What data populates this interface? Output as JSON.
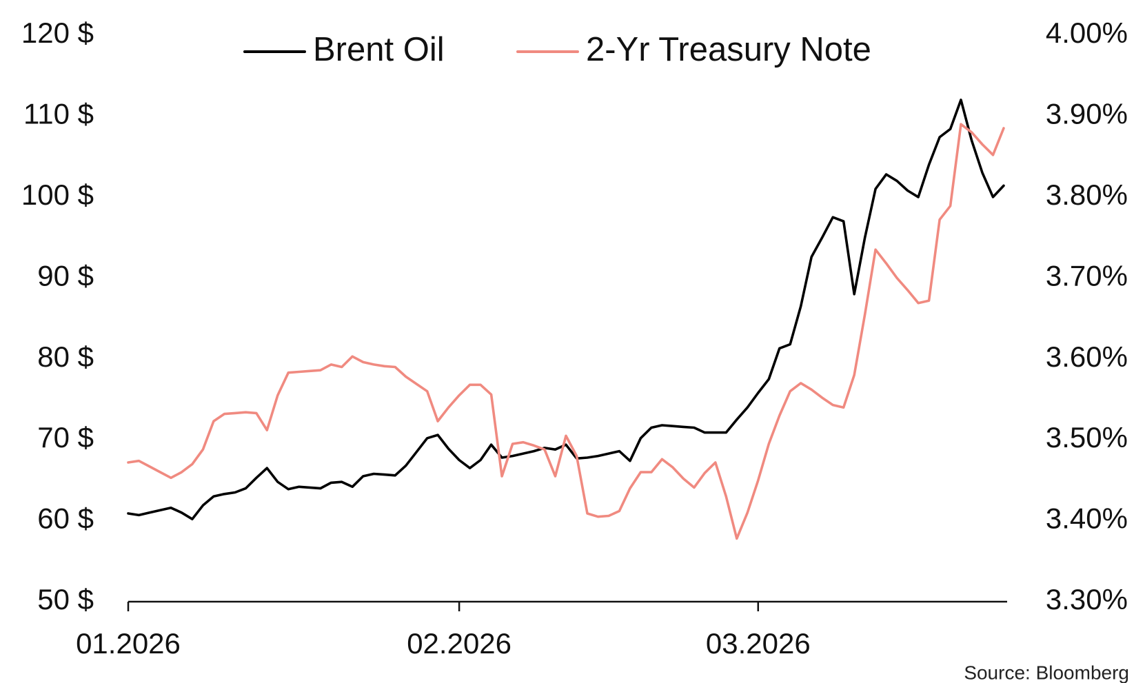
{
  "chart_data": {
    "type": "line",
    "source": "Source: Bloomberg",
    "x": [
      "01.2026",
      null,
      null,
      null,
      null,
      null,
      null,
      null,
      null,
      null,
      null,
      null,
      null,
      null,
      null,
      null,
      null,
      null,
      null,
      null,
      null,
      null,
      null,
      null,
      null,
      null,
      null,
      null,
      null,
      null,
      null,
      "02.2026",
      null,
      null,
      null,
      null,
      null,
      null,
      null,
      null,
      null,
      null,
      null,
      null,
      null,
      null,
      null,
      null,
      null,
      null,
      null,
      null,
      null,
      null,
      null,
      null,
      null,
      null,
      null,
      "03.2026",
      null,
      null,
      null,
      null,
      null,
      null,
      null,
      null,
      null,
      null,
      null,
      null,
      null,
      null,
      null,
      null,
      null,
      null,
      null,
      null,
      null,
      null,
      null
    ],
    "series": [
      {
        "name": "Brent Oil",
        "color": "#000000",
        "axis": "y",
        "values": [
          60.9,
          60.7,
          61.0,
          61.3,
          61.6,
          61.0,
          60.2,
          61.9,
          63.0,
          63.3,
          63.5,
          64.0,
          65.3,
          66.5,
          64.8,
          63.9,
          64.2,
          64.1,
          64.0,
          64.7,
          64.8,
          64.2,
          65.5,
          65.8,
          65.7,
          65.6,
          66.8,
          68.5,
          70.2,
          70.6,
          68.9,
          67.5,
          66.5,
          67.5,
          69.4,
          67.8,
          68.0,
          68.3,
          68.6,
          69.0,
          68.8,
          69.4,
          67.7,
          67.8,
          68.0,
          68.3,
          68.6,
          67.4,
          70.2,
          71.5,
          71.8,
          71.7,
          71.6,
          71.5,
          70.9,
          70.9,
          70.9,
          72.5,
          74.0,
          75.8,
          77.5,
          81.3,
          81.8,
          86.5,
          92.6,
          95.0,
          97.5,
          97.0,
          88.0,
          95.0,
          101.0,
          102.8,
          102.0,
          100.8,
          100.0,
          104.0,
          107.4,
          108.4,
          112.0,
          107.0,
          103.0,
          100.0,
          101.4
        ]
      },
      {
        "name": "2-Yr Treasury Note",
        "color": "#f08a80",
        "axis": "y2",
        "values": [
          3.472,
          3.474,
          3.467,
          3.46,
          3.453,
          3.46,
          3.47,
          3.488,
          3.523,
          3.532,
          3.533,
          3.534,
          3.533,
          3.512,
          3.555,
          3.583,
          3.584,
          3.585,
          3.586,
          3.593,
          3.59,
          3.603,
          3.596,
          3.593,
          3.591,
          3.59,
          3.578,
          3.569,
          3.56,
          3.523,
          3.54,
          3.555,
          3.568,
          3.568,
          3.556,
          3.455,
          3.495,
          3.497,
          3.493,
          3.488,
          3.455,
          3.505,
          3.48,
          3.409,
          3.405,
          3.406,
          3.412,
          3.44,
          3.46,
          3.46,
          3.476,
          3.466,
          3.452,
          3.441,
          3.459,
          3.472,
          3.43,
          3.378,
          3.41,
          3.45,
          3.495,
          3.53,
          3.56,
          3.57,
          3.562,
          3.552,
          3.543,
          3.54,
          3.58,
          3.655,
          3.735,
          3.718,
          3.7,
          3.685,
          3.669,
          3.672,
          3.772,
          3.789,
          3.89,
          3.88,
          3.865,
          3.852,
          3.885
        ]
      }
    ],
    "ylim": [
      50,
      120
    ],
    "yticks": [
      {
        "value": 50,
        "label": "50 $"
      },
      {
        "value": 60,
        "label": "60 $"
      },
      {
        "value": 70,
        "label": "70 $"
      },
      {
        "value": 80,
        "label": "80 $"
      },
      {
        "value": 90,
        "label": "90 $"
      },
      {
        "value": 100,
        "label": "100 $"
      },
      {
        "value": 110,
        "label": "110 $"
      },
      {
        "value": 120,
        "label": "120 $"
      }
    ],
    "y2lim": [
      3.3,
      4.0
    ],
    "y2ticks": [
      {
        "value": 3.3,
        "label": "3.30%"
      },
      {
        "value": 3.4,
        "label": "3.40%"
      },
      {
        "value": 3.5,
        "label": "3.50%"
      },
      {
        "value": 3.6,
        "label": "3.60%"
      },
      {
        "value": 3.7,
        "label": "3.70%"
      },
      {
        "value": 3.8,
        "label": "3.80%"
      },
      {
        "value": 3.9,
        "label": "3.90%"
      },
      {
        "value": 4.0,
        "label": "4.00%"
      }
    ],
    "grid": false
  }
}
